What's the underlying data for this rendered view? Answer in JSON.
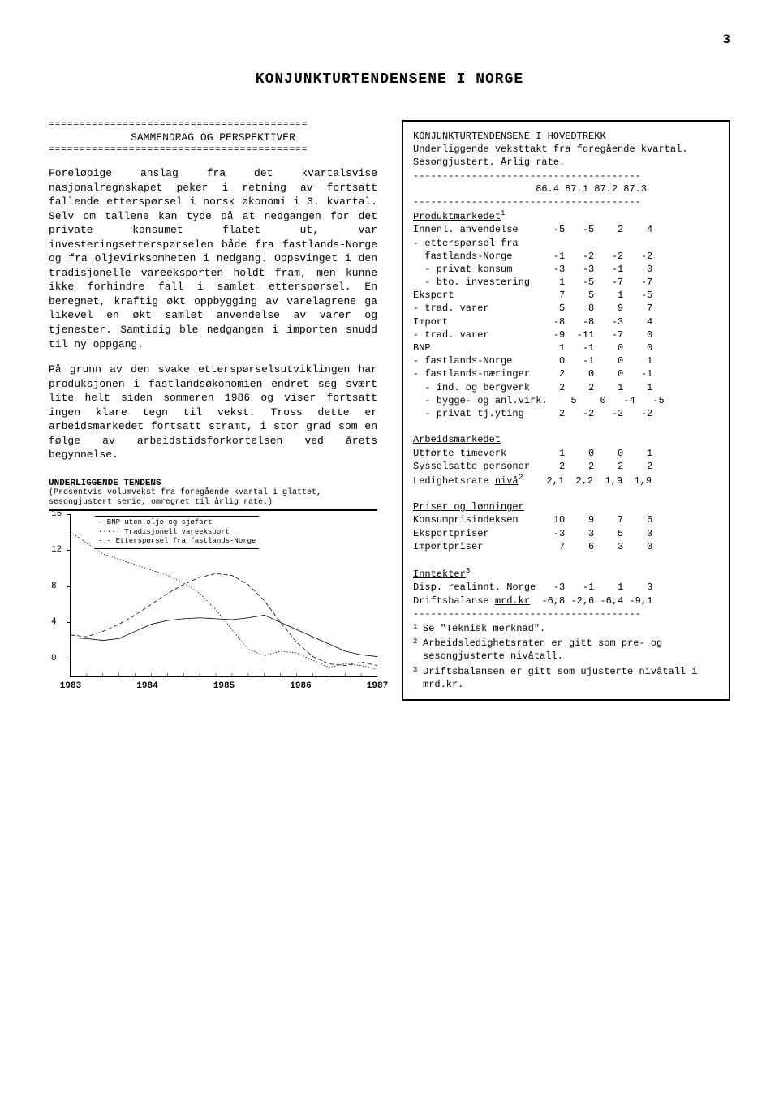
{
  "page_number": "3",
  "title": "KONJUNKTURTENDENSENE I NORGE",
  "left": {
    "divider_char": "=",
    "section_heading": "SAMMENDRAG OG PERSPEKTIVER",
    "para1": "Foreløpige anslag fra det kvartalsvise nasjonalregnskapet peker i retning av fortsatt fallende etterspørsel i norsk økonomi i 3. kvartal. Selv om tallene kan tyde på at nedgangen for det private konsumet flatet ut, var investeringsetterspørselen både fra fastlands-Norge og fra oljevirksomheten i nedgang. Oppsvinget i den tradisjonelle vareeksporten holdt fram, men kunne ikke forhindre fall i samlet etterspørsel. En beregnet, kraftig økt oppbygging av varelagrene ga likevel en økt samlet anvendelse av varer og tjenester. Samtidig ble nedgangen i importen snudd til ny oppgang.",
    "para2": "På grunn av den svake etterspørselsutviklingen har produksjonen i fastlandsøkonomien endret seg svært lite helt siden sommeren 1986 og viser fortsatt ingen klare tegn til vekst. Tross dette er arbeidsmarkedet fortsatt stramt, i stor grad som en følge av arbeidstidsforkortelsen ved årets begynnelse.",
    "chart": {
      "title": "UNDERLIGGENDE TENDENS",
      "subtitle": "(Prosentvis volumvekst fra foregående kvartal i glattet, sesongjustert serie, omregnet til årlig rate.)",
      "legend": {
        "line1": "— BNP uten olje og sjøfart",
        "line2": "····· Tradisjonell vareeksport",
        "line3": "- - Etterspørsel fra fastlands-Norge"
      },
      "y_ticks": [
        "16",
        "12",
        "8",
        "4",
        "0"
      ],
      "x_ticks": [
        "1983",
        "1984",
        "1985",
        "1986",
        "1987"
      ],
      "ylim": [
        -2,
        16
      ],
      "series": {
        "bnp": [
          2.3,
          2.2,
          2.0,
          2.2,
          3.0,
          3.8,
          4.2,
          4.4,
          4.5,
          4.4,
          4.3,
          4.5,
          4.8,
          4.0,
          3.2,
          2.4,
          1.6,
          0.8,
          0.4,
          0.2
        ],
        "trad": [
          14,
          12.8,
          11.6,
          11.0,
          10.4,
          9.8,
          9.2,
          8.4,
          7.2,
          5.4,
          3.2,
          1.0,
          0.3,
          0.8,
          0.6,
          -0.2,
          -1.0,
          -0.6,
          -0.8,
          -1.2
        ],
        "ettersp": [
          2.6,
          2.4,
          3.0,
          3.8,
          4.8,
          6.0,
          7.2,
          8.2,
          9.0,
          9.4,
          9.2,
          8.2,
          6.4,
          4.0,
          1.8,
          0.2,
          -0.6,
          -0.8,
          -0.4,
          -0.8
        ]
      },
      "colors": {
        "line": "#000000"
      }
    }
  },
  "right": {
    "box_title": "KONJUNKTURTENDENSENE I HOVEDTREKK",
    "box_sub": "Underliggende veksttakt fra foregående kvartal. Sesongjustert. Årlig rate.",
    "col_headers": [
      "86.4",
      "87.1",
      "87.2",
      "87.3"
    ],
    "sections": [
      {
        "heading": "Produktmarkedet",
        "sup": "1",
        "rows": [
          [
            "Innenl. anvendelse",
            "-5",
            "-5",
            "2",
            "4"
          ],
          [
            "- etterspørsel fra",
            "",
            "",
            "",
            ""
          ],
          [
            "  fastlands-Norge",
            "-1",
            "-2",
            "-2",
            "-2"
          ],
          [
            "  - privat konsum",
            "-3",
            "-3",
            "-1",
            "0"
          ],
          [
            "  - bto. investering",
            "1",
            "-5",
            "-7",
            "-7"
          ],
          [
            "Eksport",
            "7",
            "5",
            "1",
            "-5"
          ],
          [
            "- trad. varer",
            "5",
            "8",
            "9",
            "7"
          ],
          [
            "Import",
            "-8",
            "-8",
            "-3",
            "4"
          ],
          [
            "- trad. varer",
            "-9",
            "-11",
            "-7",
            "0"
          ],
          [
            "BNP",
            "1",
            "-1",
            "0",
            "0"
          ],
          [
            "- fastlands-Norge",
            "0",
            "-1",
            "0",
            "1"
          ],
          [
            "- fastlands-næringer",
            "2",
            "0",
            "0",
            "-1"
          ],
          [
            "  - ind. og bergverk",
            "2",
            "2",
            "1",
            "1"
          ],
          [
            "  - bygge- og anl.virk.",
            "5",
            "0",
            "-4",
            "-5"
          ],
          [
            "  - privat tj.yting",
            "2",
            "-2",
            "-2",
            "-2"
          ]
        ]
      },
      {
        "heading": "Arbeidsmarkedet",
        "rows": [
          [
            "Utførte timeverk",
            "1",
            "0",
            "0",
            "1"
          ],
          [
            "Sysselsatte personer",
            "2",
            "2",
            "2",
            "2"
          ],
          [
            "Ledighetsrate <u>nivå</u><sup>2</sup>",
            "2,1",
            "2,2",
            "1,9",
            "1,9"
          ]
        ]
      },
      {
        "heading": "Priser og lønninger",
        "rows": [
          [
            "Konsumprisindeksen",
            "10",
            "9",
            "7",
            "6"
          ],
          [
            "Eksportpriser",
            "-3",
            "3",
            "5",
            "3"
          ],
          [
            "Importpriser",
            "7",
            "6",
            "3",
            "0"
          ]
        ]
      },
      {
        "heading": "Inntekter",
        "sup": "3",
        "rows": [
          [
            "Disp. realinnt. Norge",
            "-3",
            "-1",
            "1",
            "3"
          ],
          [
            "Driftsbalanse <u>mrd.kr</u>",
            "-6,8",
            "-2,6",
            "-6,4",
            "-9,1"
          ]
        ]
      }
    ],
    "footnotes": [
      "Se \"Teknisk merknad\".",
      "Arbeidsledighetsraten er gitt som pre- og sesongjusterte nivåtall.",
      "Driftsbalansen er gitt som ujusterte nivåtall i mrd.kr."
    ]
  }
}
